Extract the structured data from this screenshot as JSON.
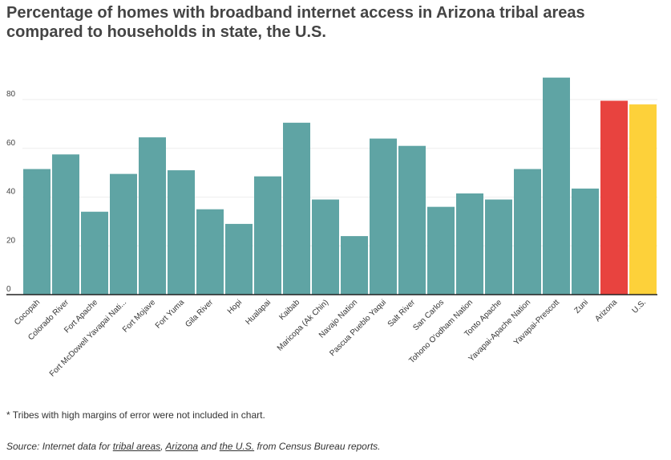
{
  "header": {
    "title_line1": "Percentage of homes with broadband internet access in Arizona tribal areas",
    "title_line2": "compared to households in state, the U.S."
  },
  "footer": {
    "note": "* Tribes with high margins of error were not included in chart.",
    "source_prefix": "Source: Internet data for ",
    "source_link1": "tribal areas",
    "source_sep1": ", ",
    "source_link2": "Arizona",
    "source_sep2": " and ",
    "source_link3": "the U.S.",
    "source_suffix": " from Census Bureau reports."
  },
  "colors": {
    "tribal": "#5fa4a4",
    "arizona": "#e8433f",
    "us": "#fdd13a",
    "axis": "#222222",
    "grid": "#eeeeee"
  },
  "chart_data": {
    "type": "bar",
    "categories": [
      "Cocopah",
      "Colorado River",
      "Fort Apache",
      "Fort McDowell Yavapai Nati...",
      "Fort Mojave",
      "Fort Yuma",
      "Gila River",
      "Hopi",
      "Hualapai",
      "Kaibab",
      "Maricopa (Ak Chin)",
      "Navajo Nation",
      "Pascua Pueblo Yaqui",
      "Salt River",
      "San Carlos",
      "Tohono O'odham Nation",
      "Tonto Apache",
      "Yavapai-Apache Nation",
      "Yavapai-Prescott",
      "Zuni",
      "Arizona",
      "U.S."
    ],
    "values": [
      51.5,
      57.5,
      34,
      49.5,
      64.5,
      51,
      35,
      29,
      48.5,
      70.5,
      39,
      24,
      64,
      61,
      36,
      41.5,
      39,
      51.5,
      89,
      43.5,
      79.5,
      78
    ],
    "bar_colors": [
      "tribal",
      "tribal",
      "tribal",
      "tribal",
      "tribal",
      "tribal",
      "tribal",
      "tribal",
      "tribal",
      "tribal",
      "tribal",
      "tribal",
      "tribal",
      "tribal",
      "tribal",
      "tribal",
      "tribal",
      "tribal",
      "tribal",
      "tribal",
      "arizona",
      "us"
    ],
    "yticks": [
      0,
      20,
      40,
      60,
      80
    ],
    "ylim": [
      0,
      90
    ],
    "grid": true,
    "xlabel": "",
    "ylabel": ""
  }
}
